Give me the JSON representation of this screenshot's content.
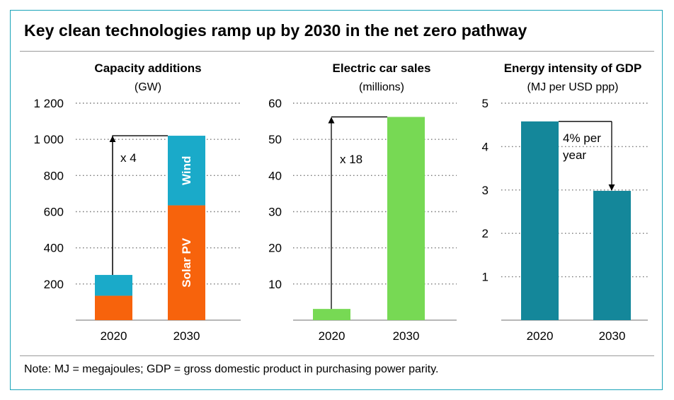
{
  "title": "Key clean technologies ramp up by 2030 in the net zero pathway",
  "note": "Note: MJ = megajoules; GDP = gross domestic product in purchasing power parity.",
  "colors": {
    "frame": "#1aa4b8",
    "wind": "#1aaac9",
    "solar_pv": "#f7630c",
    "ev": "#77d954",
    "energy_intensity": "#14879a"
  },
  "chart_data": [
    {
      "type": "bar",
      "title": "Capacity additions",
      "subtitle": "(GW)",
      "categories": [
        "2020",
        "2030"
      ],
      "series": [
        {
          "name": "Solar PV",
          "values": [
            135,
            635
          ]
        },
        {
          "name": "Wind",
          "values": [
            115,
            385
          ]
        }
      ],
      "ylim": [
        0,
        1200
      ],
      "yticks": [
        200,
        400,
        600,
        800,
        1000,
        1200
      ],
      "ytick_labels": [
        "200",
        "400",
        "600",
        "800",
        "1 000",
        "1 200"
      ],
      "annotation": "x 4",
      "grid": true
    },
    {
      "type": "bar",
      "title": "Electric car sales",
      "subtitle": "(millions)",
      "categories": [
        "2020",
        "2030"
      ],
      "values": [
        3.1,
        56.2
      ],
      "ylim": [
        0,
        60
      ],
      "yticks": [
        10,
        20,
        30,
        40,
        50,
        60
      ],
      "ytick_labels": [
        "10",
        "20",
        "30",
        "40",
        "50",
        "60"
      ],
      "annotation": "x 18",
      "grid": true
    },
    {
      "type": "bar",
      "title": "Energy intensity of GDP",
      "subtitle": "(MJ per USD ppp)",
      "categories": [
        "2020",
        "2030"
      ],
      "values": [
        4.58,
        2.98
      ],
      "ylim": [
        0,
        5
      ],
      "yticks": [
        1,
        2,
        3,
        4,
        5
      ],
      "ytick_labels": [
        "1",
        "2",
        "3",
        "4",
        "5"
      ],
      "annotation": "4% per year",
      "annotation_lines": [
        "4% per",
        "year"
      ],
      "grid": true
    }
  ]
}
